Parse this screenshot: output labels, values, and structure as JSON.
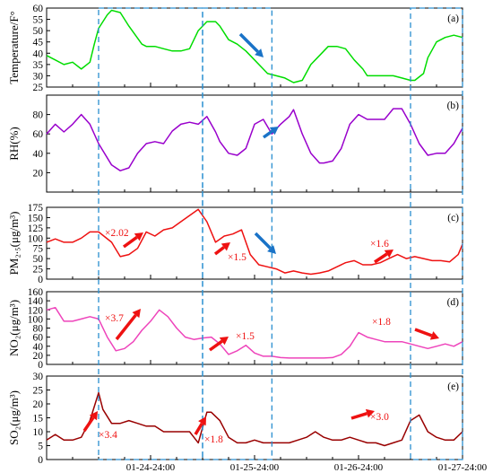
{
  "colors": {
    "temperature": "#00dd00",
    "rh": "#9900cc",
    "pm25": "#ee1111",
    "no2": "#ee44bb",
    "so2": "#990000",
    "arrow_up": "#ee1111",
    "arrow_down": "#1a73c7",
    "highlight_box": "#2a8fd0"
  },
  "chart_data": [
    {
      "type": "line",
      "panel_label": "(a)",
      "ylabel": "Temperature/F°",
      "ylim": [
        25,
        60
      ],
      "yticks": [
        25,
        30,
        35,
        40,
        45,
        50,
        55,
        60
      ],
      "x": [
        0,
        2,
        4,
        6,
        8,
        10,
        11,
        12,
        14,
        15,
        17,
        19,
        22,
        23,
        25,
        27,
        29,
        31,
        33,
        35,
        37,
        39,
        40,
        42,
        44,
        46,
        48,
        50,
        51,
        53,
        55,
        57,
        59,
        61,
        63,
        65,
        67,
        69,
        71,
        73,
        74,
        76,
        78,
        80,
        82,
        84,
        85,
        87,
        88,
        90,
        92,
        94,
        96
      ],
      "values": [
        39,
        37,
        35,
        36,
        33,
        36,
        44,
        51,
        57,
        59,
        58,
        52,
        44,
        43,
        43,
        42,
        41,
        41,
        42,
        50,
        54,
        54,
        52,
        46,
        44,
        41,
        37,
        33,
        31,
        30,
        29,
        27,
        28,
        35,
        39,
        43,
        43,
        42,
        37,
        33,
        30,
        30,
        30,
        30,
        29,
        28,
        28,
        31,
        38,
        45,
        47,
        48,
        47
      ]
    },
    {
      "type": "line",
      "panel_label": "(b)",
      "ylabel": "RH(%)",
      "ylim": [
        0,
        100
      ],
      "yticks": [
        20,
        40,
        60,
        80
      ],
      "x": [
        0,
        2,
        4,
        6,
        8,
        10,
        12,
        15,
        17,
        19,
        21,
        23,
        25,
        27,
        29,
        31,
        33,
        35,
        37,
        39,
        40,
        42,
        44,
        46,
        48,
        50,
        52,
        54,
        56,
        57,
        59,
        61,
        63,
        64,
        66,
        68,
        70,
        72,
        74,
        76,
        78,
        80,
        82,
        84,
        86,
        88,
        90,
        92,
        94,
        96
      ],
      "values": [
        60,
        70,
        62,
        70,
        80,
        70,
        50,
        28,
        22,
        25,
        40,
        50,
        52,
        50,
        63,
        70,
        72,
        70,
        78,
        62,
        52,
        40,
        38,
        45,
        70,
        75,
        60,
        70,
        78,
        85,
        60,
        40,
        30,
        30,
        32,
        45,
        70,
        80,
        75,
        75,
        75,
        86,
        86,
        70,
        50,
        38,
        40,
        40,
        50,
        66
      ]
    },
    {
      "type": "line",
      "panel_label": "(c)",
      "ylabel": "PM₂.₅(μg/m³)",
      "ylim": [
        0,
        175
      ],
      "yticks": [
        0,
        25,
        50,
        75,
        100,
        125,
        150,
        175
      ],
      "x": [
        0,
        2,
        4,
        6,
        8,
        10,
        12,
        15,
        17,
        19,
        21,
        23,
        25,
        27,
        29,
        31,
        33,
        35,
        37,
        39,
        41,
        43,
        45,
        47,
        49,
        51,
        53,
        55,
        57,
        59,
        61,
        63,
        65,
        67,
        69,
        71,
        73,
        75,
        77,
        79,
        81,
        83,
        85,
        87,
        89,
        91,
        93,
        95,
        96
      ],
      "values": [
        90,
        98,
        90,
        90,
        100,
        115,
        115,
        90,
        55,
        60,
        75,
        115,
        105,
        120,
        125,
        140,
        155,
        170,
        140,
        90,
        105,
        110,
        120,
        60,
        35,
        30,
        25,
        15,
        20,
        15,
        12,
        15,
        20,
        30,
        40,
        45,
        35,
        35,
        40,
        50,
        60,
        50,
        55,
        50,
        45,
        45,
        42,
        60,
        85
      ]
    },
    {
      "type": "line",
      "panel_label": "(d)",
      "ylabel": "NO₂(μg/m³)",
      "ylim": [
        0,
        160
      ],
      "yticks": [
        0,
        20,
        40,
        60,
        80,
        100,
        120,
        140,
        160
      ],
      "x": [
        0,
        2,
        4,
        6,
        8,
        10,
        12,
        14,
        16,
        18,
        20,
        22,
        24,
        26,
        28,
        30,
        32,
        34,
        36,
        38,
        40,
        42,
        44,
        46,
        48,
        50,
        52,
        54,
        56,
        58,
        60,
        62,
        64,
        66,
        68,
        70,
        72,
        74,
        76,
        78,
        80,
        82,
        84,
        86,
        88,
        90,
        92,
        94,
        96
      ],
      "values": [
        120,
        125,
        95,
        95,
        100,
        105,
        100,
        60,
        30,
        35,
        50,
        75,
        95,
        120,
        105,
        80,
        60,
        55,
        58,
        60,
        45,
        22,
        30,
        42,
        25,
        18,
        18,
        15,
        14,
        14,
        14,
        14,
        14,
        15,
        22,
        40,
        70,
        60,
        55,
        50,
        50,
        50,
        45,
        40,
        35,
        40,
        45,
        40,
        50
      ]
    },
    {
      "type": "line",
      "panel_label": "(e)",
      "ylabel": "SO₂(μg/m³)",
      "ylim": [
        0,
        30
      ],
      "yticks": [
        0,
        5,
        10,
        15,
        20,
        25,
        30
      ],
      "xticklabels": [
        "01-24-24:00",
        "01-25-24:00",
        "01-26-24:00",
        "01-27-24:00"
      ],
      "x": [
        0,
        2,
        4,
        6,
        8,
        10,
        12,
        13,
        15,
        17,
        19,
        21,
        23,
        25,
        27,
        29,
        31,
        33,
        35,
        37,
        38,
        40,
        42,
        44,
        46,
        48,
        50,
        52,
        54,
        56,
        58,
        60,
        62,
        64,
        66,
        68,
        70,
        72,
        74,
        76,
        78,
        80,
        82,
        84,
        86,
        88,
        90,
        92,
        94,
        96
      ],
      "values": [
        7,
        9,
        7,
        7,
        8,
        14,
        24,
        18,
        13,
        13,
        14,
        13,
        12,
        12,
        10,
        10,
        10,
        10,
        6,
        17,
        17,
        14,
        8,
        6,
        6,
        7,
        6,
        6,
        6,
        6,
        7,
        8,
        10,
        8,
        7,
        7,
        8,
        7,
        6,
        6,
        5,
        6,
        7,
        14,
        16,
        10,
        8,
        7,
        7,
        10
      ]
    }
  ],
  "annotations": {
    "c_left": "×2.02",
    "c_mid": "×1.5",
    "c_right": "×1.6",
    "d_left": "×3.7",
    "d_mid": "×1.5",
    "d_right": "×1.8",
    "e_left": "×3.4",
    "e_mid": "×1.8",
    "e_right": "×3.0"
  }
}
